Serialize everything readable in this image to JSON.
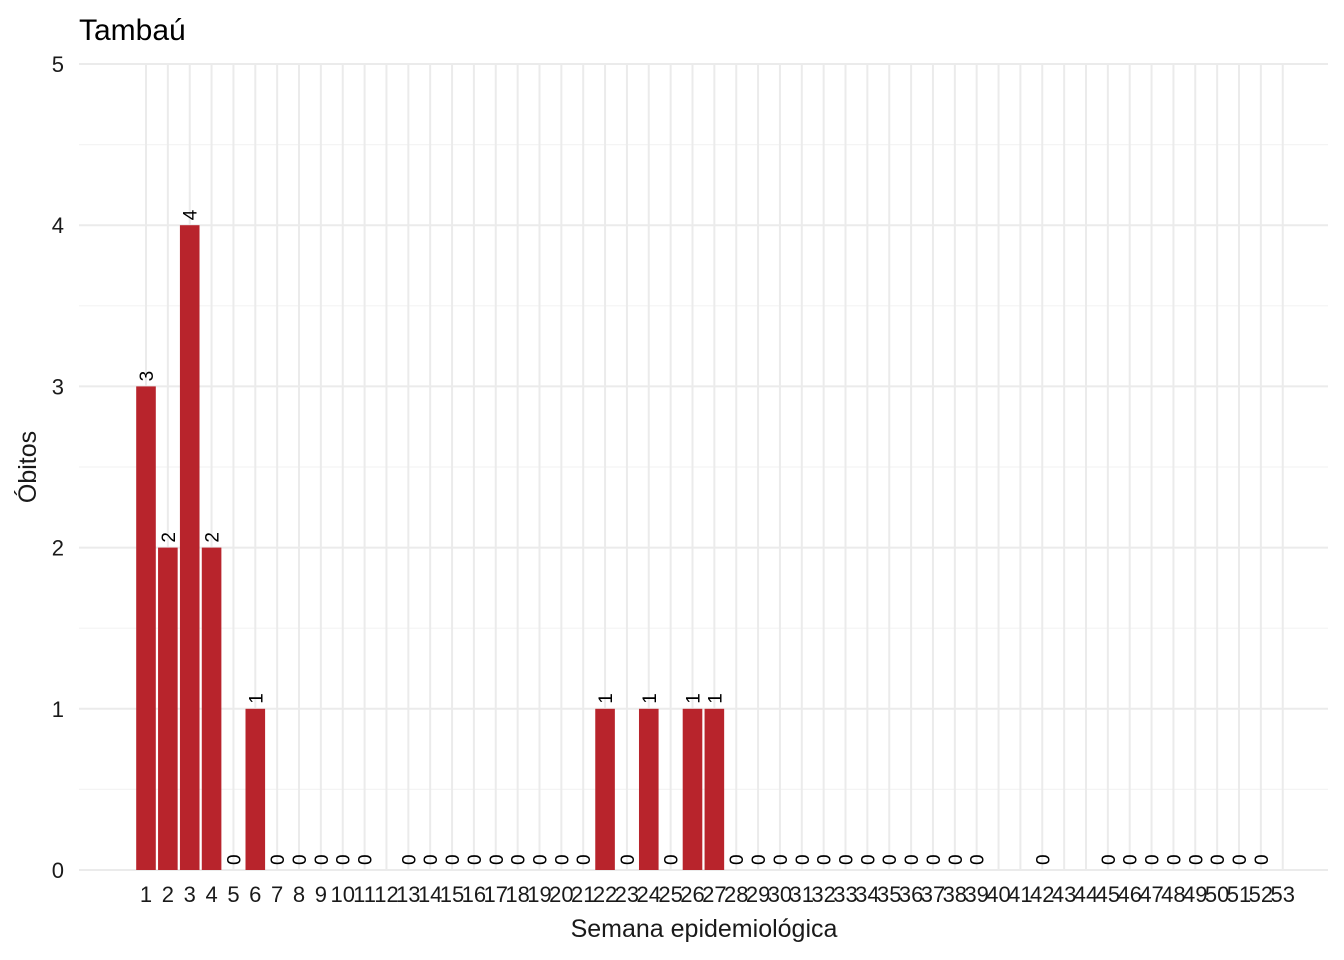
{
  "chart_data": {
    "type": "bar",
    "title": "Tambaú",
    "xlabel": "Semana epidemiológica",
    "ylabel": "Óbitos",
    "ylim": [
      0,
      5
    ],
    "yticks": [
      "0",
      "1",
      "2",
      "3",
      "4",
      "5"
    ],
    "bar_color": "#b8242c",
    "grid": true,
    "legend": "none",
    "categories": [
      "1",
      "2",
      "3",
      "4",
      "5",
      "6",
      "7",
      "8",
      "9",
      "10",
      "11",
      "12",
      "13",
      "14",
      "15",
      "16",
      "17",
      "18",
      "19",
      "20",
      "21",
      "22",
      "23",
      "24",
      "25",
      "26",
      "27",
      "28",
      "29",
      "30",
      "31",
      "32",
      "33",
      "34",
      "35",
      "36",
      "37",
      "38",
      "39",
      "40",
      "41",
      "42",
      "43",
      "44",
      "45",
      "46",
      "47",
      "48",
      "49",
      "50",
      "51",
      "52",
      "53"
    ],
    "values": [
      3,
      2,
      4,
      2,
      0,
      1,
      0,
      0,
      0,
      0,
      0,
      null,
      0,
      0,
      0,
      0,
      0,
      0,
      0,
      0,
      0,
      1,
      0,
      1,
      0,
      1,
      1,
      0,
      0,
      0,
      0,
      0,
      0,
      0,
      0,
      0,
      0,
      0,
      0,
      null,
      null,
      0,
      null,
      null,
      0,
      0,
      0,
      0,
      0,
      0,
      0,
      0,
      null
    ]
  }
}
